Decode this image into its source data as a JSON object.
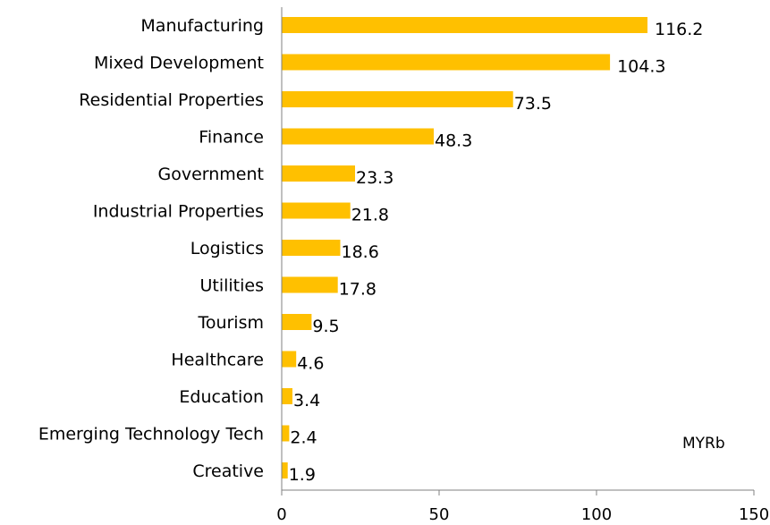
{
  "chart_data": {
    "type": "bar",
    "orientation": "horizontal",
    "categories": [
      "Manufacturing",
      "Mixed Development",
      "Residential Properties",
      "Finance",
      "Government",
      "Industrial Properties",
      "Logistics",
      "Utilities",
      "Tourism",
      "Healthcare",
      "Education",
      "Emerging Technology Tech",
      "Creative"
    ],
    "values": [
      116.2,
      104.3,
      73.5,
      48.3,
      23.3,
      21.8,
      18.6,
      17.8,
      9.5,
      4.6,
      3.4,
      2.4,
      1.9
    ],
    "value_labels": [
      "116.2",
      "104.3",
      "73.5",
      "48.3",
      "23.3",
      "21.8",
      "18.6",
      "17.8",
      "9.5",
      "4.6",
      "3.4",
      "2.4",
      "1.9"
    ],
    "xlim": [
      0,
      150
    ],
    "xticks": [
      0,
      50,
      100,
      150
    ],
    "unit_label": "MYRb",
    "title": "",
    "xlabel": "",
    "ylabel": "",
    "grid": false,
    "legend": "none",
    "bar_color": "#FFC000",
    "axis_color": "#808080"
  }
}
